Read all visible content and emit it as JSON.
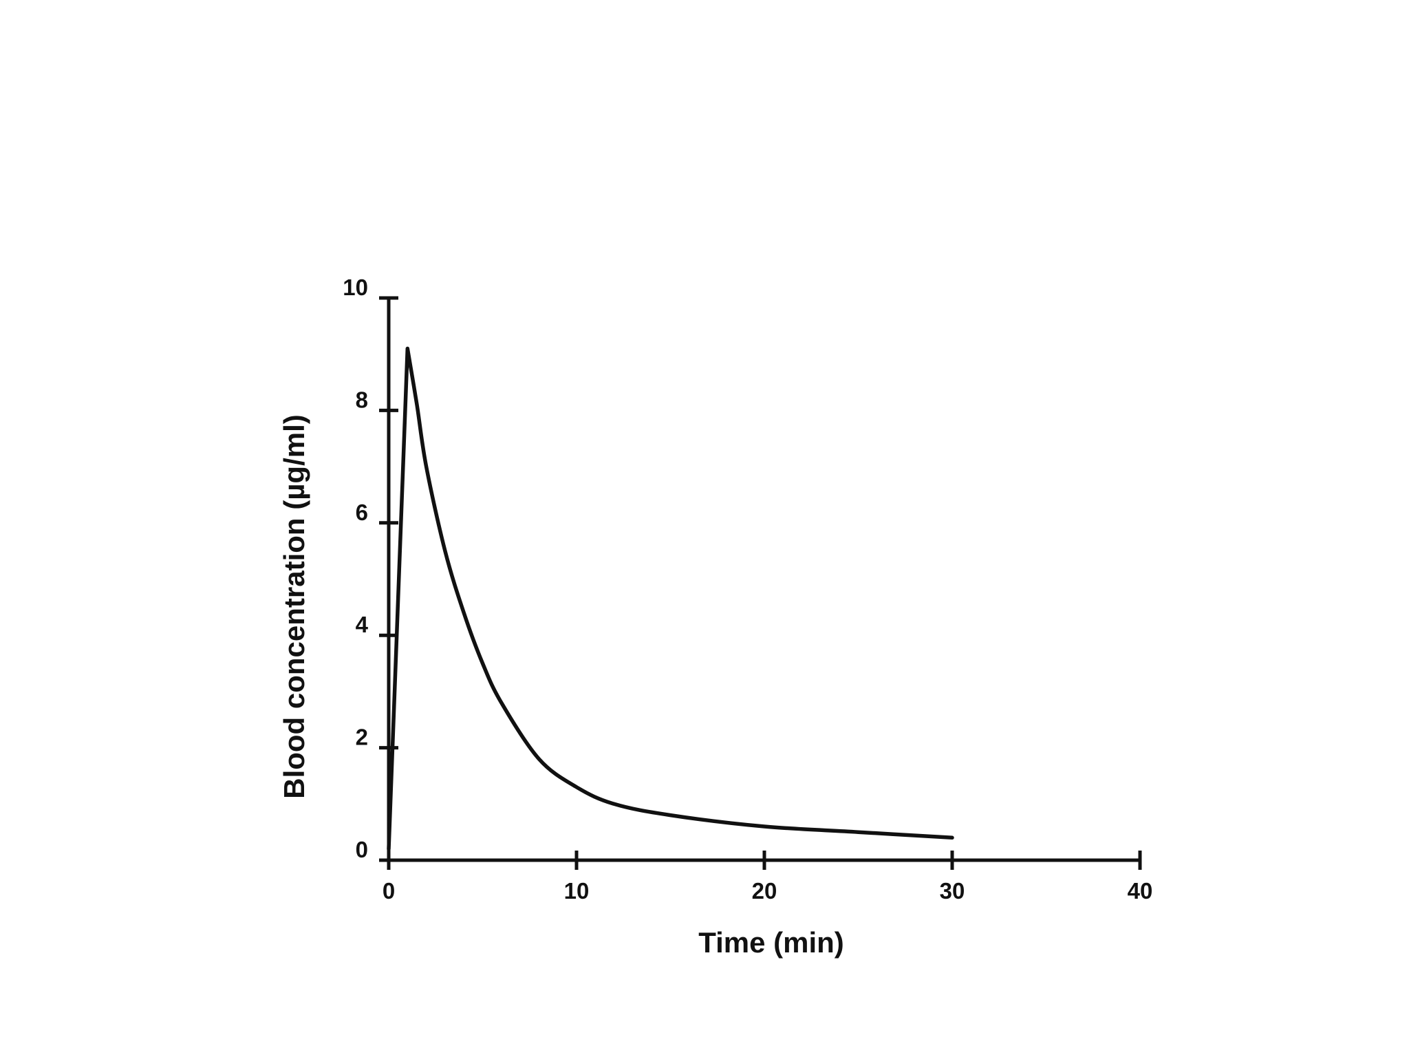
{
  "chart_data": {
    "type": "line",
    "title": "",
    "xlabel": "Time (min)",
    "ylabel": "Blood concentration (µg/ml)",
    "xlim": [
      0,
      40
    ],
    "ylim": [
      0,
      10
    ],
    "x_ticks": [
      0,
      10,
      20,
      30,
      40
    ],
    "y_ticks": [
      0,
      2,
      4,
      6,
      8,
      10
    ],
    "x_tick_labels": [
      "0",
      "10",
      "20",
      "30",
      "40"
    ],
    "y_tick_labels": [
      "0",
      "2",
      "4",
      "6",
      "8",
      "10"
    ],
    "grid": false,
    "legend": "none",
    "series": [
      {
        "color": "#111111",
        "x": [
          0,
          1,
          1.5,
          2,
          3,
          4,
          5,
          6,
          8,
          10,
          12,
          15,
          20,
          25,
          30
        ],
        "y": [
          0.2,
          9.1,
          8.1,
          7.0,
          5.5,
          4.4,
          3.5,
          2.8,
          1.8,
          1.3,
          1.0,
          0.8,
          0.6,
          0.5,
          0.4
        ]
      }
    ]
  }
}
